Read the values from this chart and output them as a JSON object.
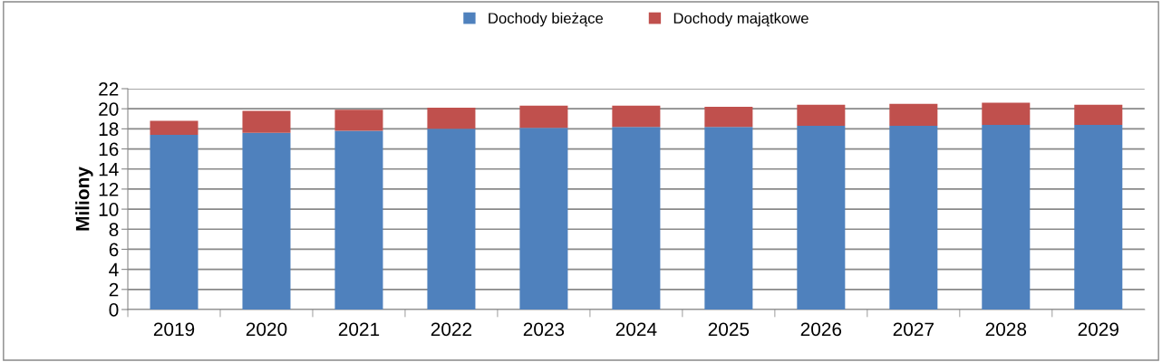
{
  "chart_data": {
    "type": "bar",
    "stacked": true,
    "ylabel": "Miliony",
    "categories": [
      "2019",
      "2020",
      "2021",
      "2022",
      "2023",
      "2024",
      "2025",
      "2026",
      "2027",
      "2028",
      "2029"
    ],
    "series": [
      {
        "name": "Dochody bieżące",
        "color": "#4f81bd",
        "values": [
          17.4,
          17.6,
          17.8,
          18.0,
          18.1,
          18.2,
          18.2,
          18.3,
          18.3,
          18.4,
          18.4
        ]
      },
      {
        "name": "Dochody majątkowe",
        "color": "#c0504d",
        "values": [
          1.4,
          2.2,
          2.1,
          2.1,
          2.2,
          2.1,
          2.0,
          2.1,
          2.2,
          2.2,
          2.0
        ]
      }
    ],
    "ylim": [
      0,
      22
    ],
    "yticks": [
      0,
      2,
      4,
      6,
      8,
      10,
      12,
      14,
      16,
      18,
      20,
      22
    ],
    "grid": "y",
    "legend": "top"
  }
}
